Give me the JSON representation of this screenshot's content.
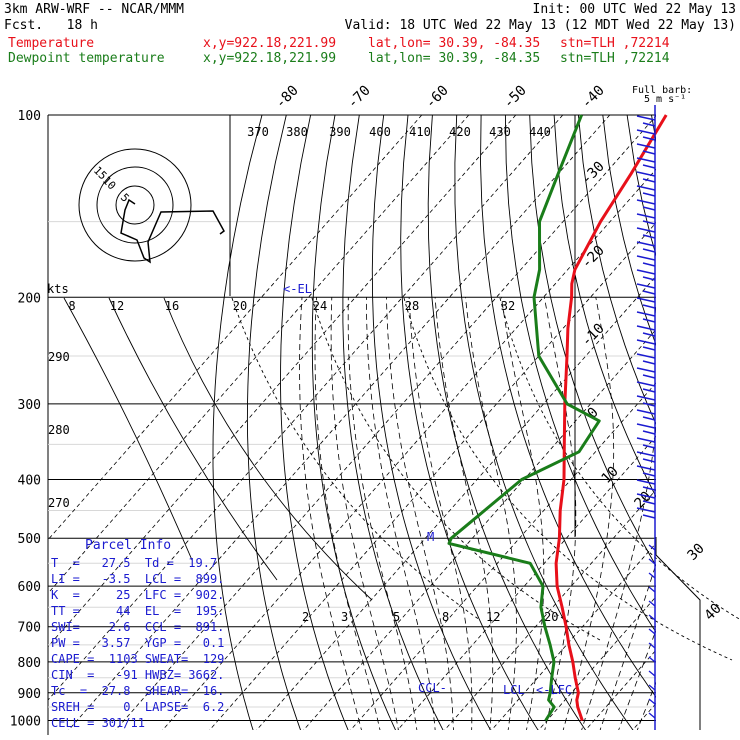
{
  "header": {
    "model": "3km ARW-WRF -- NCAR/MMM",
    "init": "Init: 00 UTC Wed 22 May 13",
    "fcst": "Fcst.   18 h",
    "valid": "Valid: 18 UTC Wed 22 May 13 (12 MDT Wed 22 May 13)",
    "temp_label": "Temperature",
    "dew_label": "Dewpoint temperature",
    "xy": "x,y=922.18,221.99",
    "latlon": "lat,lon= 30.39, -84.35",
    "stn": "stn=TLH ,72214"
  },
  "colors": {
    "temperature": "#e8101a",
    "dewpoint": "#1a7d1a",
    "labels": "#1b1bd0",
    "grid": "#000000"
  },
  "barb_legend": {
    "line1": "Full barb:",
    "line2": "5 m s⁻¹"
  },
  "wind_label": "kts",
  "chart_data": {
    "type": "line",
    "chart_subtype": "skew-T log-P",
    "pressure_levels": [
      100,
      200,
      300,
      400,
      500,
      600,
      700,
      800,
      900,
      1000
    ],
    "temperature_axis_labels": [
      "-80",
      "-70",
      "-60",
      "-50",
      "-40",
      "-30",
      "-20",
      "-10",
      "0",
      "10",
      "20",
      "30",
      "40"
    ],
    "theta_e_labels": [
      "370",
      "380",
      "390",
      "400",
      "410",
      "420",
      "430",
      "440"
    ],
    "theta_labels": [
      "290",
      "280",
      "270"
    ],
    "mixing_ratio_labels": [
      "2",
      "3",
      "5",
      "8",
      "12",
      "20"
    ],
    "hodograph_ring_labels": [
      "8",
      "12",
      "16",
      "20",
      "24",
      "28",
      "32"
    ],
    "hodograph_circle_labels": [
      "15",
      "10",
      "5"
    ],
    "series": [
      {
        "name": "Temperature",
        "p": [
          1000,
          950,
          925,
          900,
          850,
          800,
          750,
          700,
          650,
          600,
          550,
          500,
          450,
          400,
          350,
          300,
          250,
          225,
          200,
          190,
          180,
          150,
          125,
          100
        ],
        "t": [
          27.5,
          24.0,
          22.5,
          21.5,
          18.0,
          14.5,
          10.5,
          6.5,
          2.0,
          -3.0,
          -7.5,
          -11.5,
          -16.5,
          -21.5,
          -28.0,
          -35.5,
          -44.0,
          -49.0,
          -54.0,
          -56.5,
          -58.5,
          -62.0,
          -64.5,
          -68.0
        ]
      },
      {
        "name": "Dewpoint temperature",
        "p": [
          1000,
          950,
          925,
          900,
          850,
          800,
          750,
          700,
          650,
          600,
          550,
          510,
          500,
          460,
          400,
          360,
          320,
          300,
          250,
          200,
          180,
          150,
          125,
          100
        ],
        "t": [
          19.7,
          19.0,
          16.5,
          15.5,
          13.0,
          10.5,
          6.5,
          2.0,
          -2.5,
          -6.0,
          -13.0,
          -34.0,
          -34.5,
          -33.0,
          -30.5,
          -23.5,
          -25.0,
          -35.0,
          -50.0,
          -62.0,
          -66.0,
          -75.0,
          -80.0,
          -86.0
        ]
      }
    ],
    "annotations": [
      "<-EL",
      "CCL-",
      "LCL",
      "<-LFC",
      "M"
    ],
    "parcel_info": {
      "title": "Parcel Info",
      "rows": [
        "T  =   27.5  Td =  19.7",
        "LI =   -3.5  LCL =  899.",
        "K  =     25  LFC =  902.",
        "TT =     44  EL  =  195.",
        "SWI=    2.6  CCL =  891.",
        "PW =   3.57  YGP =   0.1",
        "CAPE =  1103 SWEAT=  129",
        "CIN  =   -91 HWBZ= 3662.",
        "Tc  =  27.8  SHEAR=  16.",
        "SREH =    0  LAPSE=  6.2",
        "CELL = 301/11"
      ]
    }
  }
}
